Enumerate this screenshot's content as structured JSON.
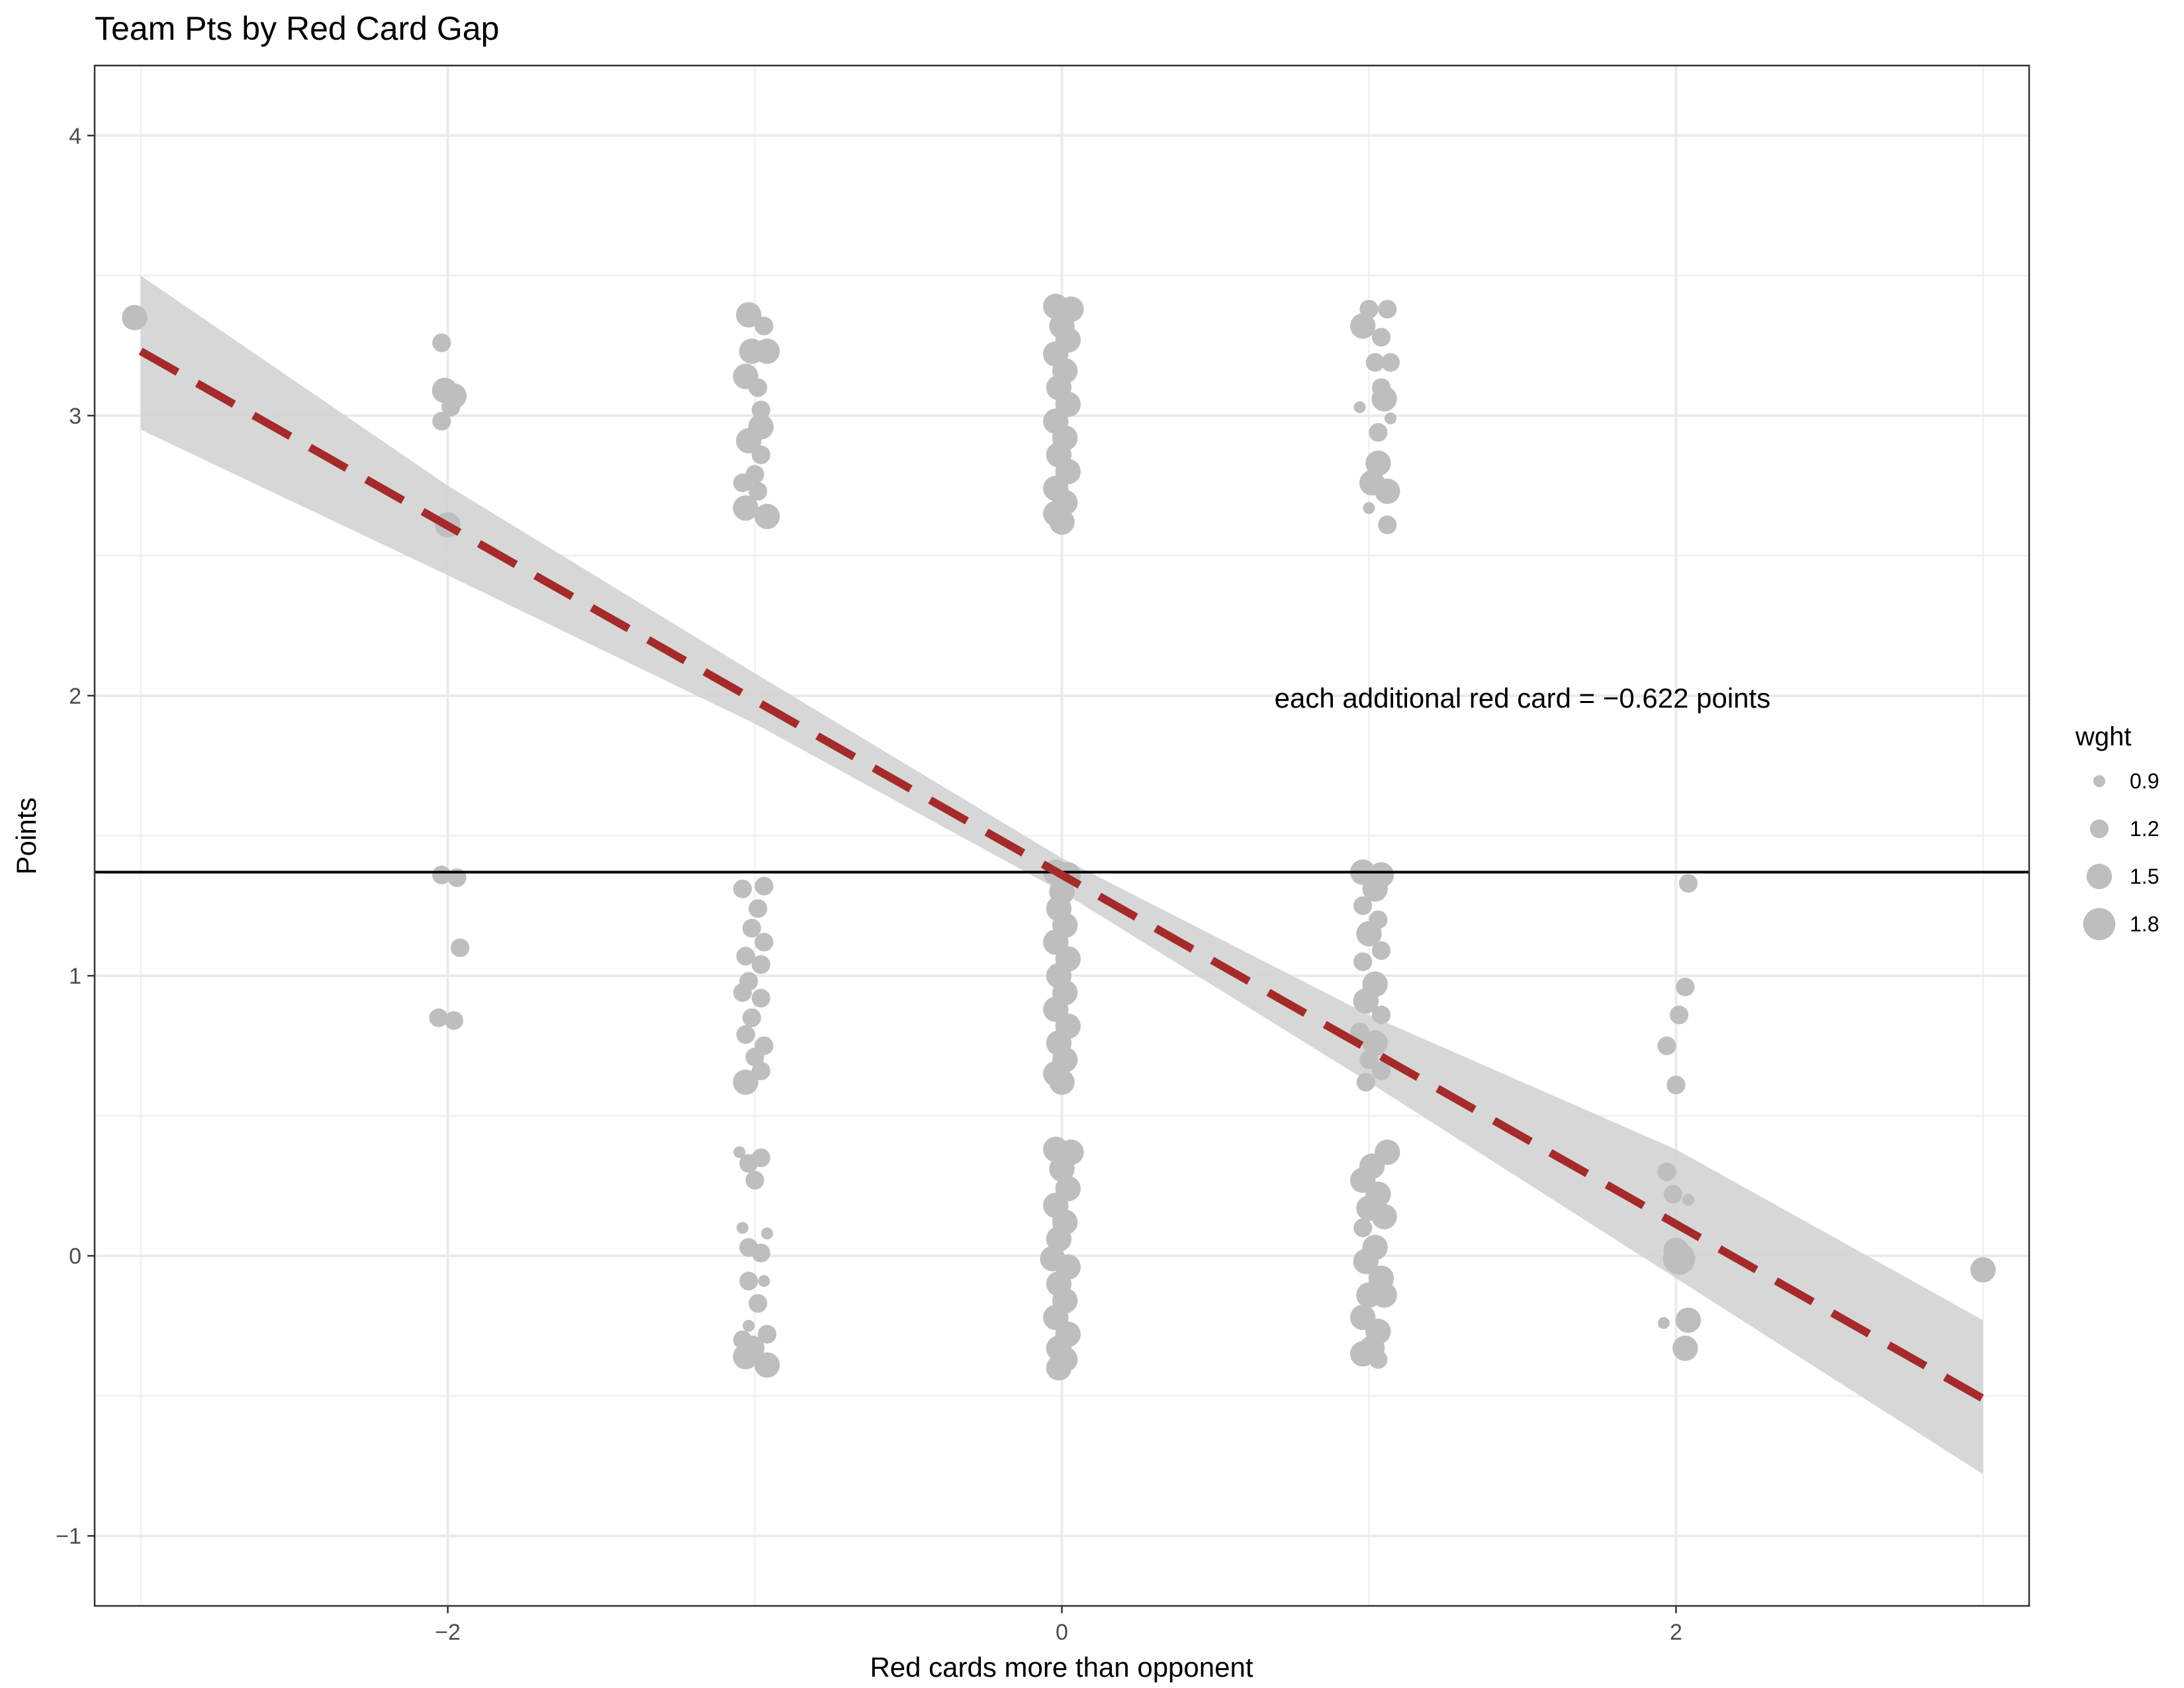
{
  "chart_data": {
    "type": "scatter",
    "title": "Team Pts by Red Card Gap",
    "xlabel": "Red cards more than opponent",
    "ylabel": "Points",
    "xlim": [
      -3.15,
      3.15
    ],
    "ylim": [
      -1.25,
      4.25
    ],
    "x_ticks": [
      -2,
      0,
      2
    ],
    "x_tick_labels": [
      "−2",
      "0",
      "2"
    ],
    "y_ticks": [
      -1,
      0,
      1,
      2,
      3,
      4
    ],
    "y_tick_labels": [
      "−1",
      "0",
      "1",
      "2",
      "3",
      "4"
    ],
    "x_minor_gridlines": [
      -3,
      -1,
      1,
      3
    ],
    "y_minor_gridlines": [
      -0.5,
      0.5,
      1.5,
      2.5,
      3.5
    ],
    "grid": true,
    "legend": {
      "title": "wght",
      "position": "right",
      "items": [
        {
          "label": "0.9",
          "size": 0.9
        },
        {
          "label": "1.2",
          "size": 1.2
        },
        {
          "label": "1.5",
          "size": 1.5
        },
        {
          "label": "1.8",
          "size": 1.8
        }
      ]
    },
    "point_color": "#bebebe",
    "hline": {
      "y": 1.37,
      "color": "#000000"
    },
    "fit": {
      "type": "linear",
      "x_range": [
        -3,
        3
      ],
      "y_start": 3.23,
      "y_end": -0.51,
      "slope": -0.622,
      "color": "#a52a2a",
      "dash": true
    },
    "confidence_band": {
      "color": "#d3d3d3",
      "x": [
        -3,
        -2,
        -1,
        0,
        1,
        2,
        3
      ],
      "upper": [
        3.5,
        2.75,
        2.08,
        1.42,
        0.86,
        0.38,
        -0.23
      ],
      "lower": [
        2.95,
        2.43,
        1.9,
        1.3,
        0.62,
        -0.08,
        -0.78
      ]
    },
    "annotation": {
      "text": "each additional red card = −0.622 points",
      "x": 1.5,
      "y": 1.99
    },
    "points": [
      {
        "x": -3.02,
        "y": 3.35,
        "w": 1.5
      },
      {
        "x": -2.02,
        "y": 3.26,
        "w": 1.2
      },
      {
        "x": -2.01,
        "y": 3.09,
        "w": 1.5
      },
      {
        "x": -1.98,
        "y": 3.07,
        "w": 1.5
      },
      {
        "x": -1.99,
        "y": 3.03,
        "w": 1.2
      },
      {
        "x": -2.02,
        "y": 2.98,
        "w": 1.2
      },
      {
        "x": -2.0,
        "y": 2.61,
        "w": 1.5
      },
      {
        "x": -2.02,
        "y": 1.36,
        "w": 1.2
      },
      {
        "x": -1.97,
        "y": 1.35,
        "w": 1.2
      },
      {
        "x": -1.96,
        "y": 1.1,
        "w": 1.2
      },
      {
        "x": -2.03,
        "y": 0.85,
        "w": 1.2
      },
      {
        "x": -1.98,
        "y": 0.84,
        "w": 1.2
      },
      {
        "x": 2.04,
        "y": 1.33,
        "w": 1.2
      },
      {
        "x": 2.03,
        "y": 0.96,
        "w": 1.2
      },
      {
        "x": 2.01,
        "y": 0.86,
        "w": 1.2
      },
      {
        "x": 1.97,
        "y": 0.75,
        "w": 1.2
      },
      {
        "x": 2.0,
        "y": 0.61,
        "w": 1.2
      },
      {
        "x": 1.97,
        "y": 0.3,
        "w": 1.2
      },
      {
        "x": 1.99,
        "y": 0.22,
        "w": 1.2
      },
      {
        "x": 2.04,
        "y": 0.2,
        "w": 0.9
      },
      {
        "x": 2.0,
        "y": 0.02,
        "w": 1.5
      },
      {
        "x": 2.01,
        "y": -0.01,
        "w": 1.8
      },
      {
        "x": 2.04,
        "y": -0.23,
        "w": 1.5
      },
      {
        "x": 1.96,
        "y": -0.24,
        "w": 0.9
      },
      {
        "x": 2.03,
        "y": -0.33,
        "w": 1.5
      },
      {
        "x": 3.0,
        "y": -0.05,
        "w": 1.5
      },
      {
        "x": 1.0,
        "y": 3.38,
        "w": 1.2
      },
      {
        "x": 1.06,
        "y": 3.38,
        "w": 1.2
      },
      {
        "x": 0.98,
        "y": 3.32,
        "w": 1.5
      },
      {
        "x": 1.04,
        "y": 3.28,
        "w": 1.2
      },
      {
        "x": 1.02,
        "y": 3.19,
        "w": 1.2
      },
      {
        "x": 1.07,
        "y": 3.19,
        "w": 1.2
      },
      {
        "x": 1.04,
        "y": 3.1,
        "w": 1.2
      },
      {
        "x": 1.05,
        "y": 3.06,
        "w": 1.5
      },
      {
        "x": 0.97,
        "y": 3.03,
        "w": 0.9
      },
      {
        "x": 1.07,
        "y": 2.99,
        "w": 0.9
      },
      {
        "x": 1.03,
        "y": 2.94,
        "w": 1.2
      },
      {
        "x": 1.03,
        "y": 2.83,
        "w": 1.5
      },
      {
        "x": 1.01,
        "y": 2.76,
        "w": 1.5
      },
      {
        "x": 1.06,
        "y": 2.73,
        "w": 1.5
      },
      {
        "x": 1.0,
        "y": 2.67,
        "w": 0.9
      },
      {
        "x": 1.06,
        "y": 2.61,
        "w": 1.2
      },
      {
        "x": -1.02,
        "y": 3.36,
        "w": 1.5
      },
      {
        "x": -0.97,
        "y": 3.32,
        "w": 1.2
      },
      {
        "x": -1.01,
        "y": 3.23,
        "w": 1.5
      },
      {
        "x": -0.96,
        "y": 3.23,
        "w": 1.5
      },
      {
        "x": -1.03,
        "y": 3.14,
        "w": 1.5
      },
      {
        "x": -0.99,
        "y": 3.1,
        "w": 1.2
      },
      {
        "x": -0.98,
        "y": 3.02,
        "w": 1.2
      },
      {
        "x": -0.98,
        "y": 2.96,
        "w": 1.5
      },
      {
        "x": -1.02,
        "y": 2.91,
        "w": 1.5
      },
      {
        "x": -0.98,
        "y": 2.86,
        "w": 1.2
      },
      {
        "x": -1.0,
        "y": 2.79,
        "w": 1.2
      },
      {
        "x": -1.04,
        "y": 2.76,
        "w": 1.2
      },
      {
        "x": -0.99,
        "y": 2.73,
        "w": 1.2
      },
      {
        "x": -1.03,
        "y": 2.67,
        "w": 1.5
      },
      {
        "x": -0.96,
        "y": 2.64,
        "w": 1.5
      },
      {
        "x": -1.04,
        "y": 1.31,
        "w": 1.2
      },
      {
        "x": -0.97,
        "y": 1.32,
        "w": 1.2
      },
      {
        "x": -0.99,
        "y": 1.24,
        "w": 1.2
      },
      {
        "x": -1.01,
        "y": 1.17,
        "w": 1.2
      },
      {
        "x": -0.97,
        "y": 1.12,
        "w": 1.2
      },
      {
        "x": -1.03,
        "y": 1.07,
        "w": 1.2
      },
      {
        "x": -0.98,
        "y": 1.04,
        "w": 1.2
      },
      {
        "x": -1.02,
        "y": 0.98,
        "w": 1.2
      },
      {
        "x": -1.04,
        "y": 0.94,
        "w": 1.2
      },
      {
        "x": -0.98,
        "y": 0.92,
        "w": 1.2
      },
      {
        "x": -1.01,
        "y": 0.85,
        "w": 1.2
      },
      {
        "x": -1.03,
        "y": 0.79,
        "w": 1.2
      },
      {
        "x": -0.97,
        "y": 0.75,
        "w": 1.2
      },
      {
        "x": -1.0,
        "y": 0.71,
        "w": 1.2
      },
      {
        "x": -0.98,
        "y": 0.66,
        "w": 1.2
      },
      {
        "x": -1.03,
        "y": 0.62,
        "w": 1.5
      },
      {
        "x": -0.98,
        "y": 0.35,
        "w": 1.2
      },
      {
        "x": -1.02,
        "y": 0.33,
        "w": 1.2
      },
      {
        "x": -1.05,
        "y": 0.37,
        "w": 0.9
      },
      {
        "x": -1.0,
        "y": 0.27,
        "w": 1.2
      },
      {
        "x": -1.04,
        "y": 0.1,
        "w": 0.9
      },
      {
        "x": -0.96,
        "y": 0.08,
        "w": 0.9
      },
      {
        "x": -1.02,
        "y": 0.03,
        "w": 1.2
      },
      {
        "x": -0.98,
        "y": 0.01,
        "w": 1.2
      },
      {
        "x": -1.02,
        "y": -0.09,
        "w": 1.2
      },
      {
        "x": -0.97,
        "y": -0.09,
        "w": 0.9
      },
      {
        "x": -0.99,
        "y": -0.17,
        "w": 1.2
      },
      {
        "x": -1.02,
        "y": -0.25,
        "w": 0.9
      },
      {
        "x": -1.04,
        "y": -0.3,
        "w": 1.2
      },
      {
        "x": -0.96,
        "y": -0.28,
        "w": 1.2
      },
      {
        "x": -1.01,
        "y": -0.33,
        "w": 1.5
      },
      {
        "x": -1.03,
        "y": -0.36,
        "w": 1.5
      },
      {
        "x": -0.96,
        "y": -0.39,
        "w": 1.5
      },
      {
        "x": -0.02,
        "y": 3.39,
        "w": 1.5
      },
      {
        "x": 0.03,
        "y": 3.38,
        "w": 1.5
      },
      {
        "x": 0.0,
        "y": 3.32,
        "w": 1.5
      },
      {
        "x": 0.02,
        "y": 3.27,
        "w": 1.5
      },
      {
        "x": -0.02,
        "y": 3.22,
        "w": 1.5
      },
      {
        "x": 0.01,
        "y": 3.16,
        "w": 1.5
      },
      {
        "x": -0.01,
        "y": 3.1,
        "w": 1.5
      },
      {
        "x": 0.02,
        "y": 3.04,
        "w": 1.5
      },
      {
        "x": -0.02,
        "y": 2.98,
        "w": 1.5
      },
      {
        "x": 0.01,
        "y": 2.92,
        "w": 1.5
      },
      {
        "x": -0.01,
        "y": 2.86,
        "w": 1.5
      },
      {
        "x": 0.02,
        "y": 2.8,
        "w": 1.5
      },
      {
        "x": -0.02,
        "y": 2.74,
        "w": 1.5
      },
      {
        "x": 0.01,
        "y": 2.69,
        "w": 1.5
      },
      {
        "x": -0.02,
        "y": 2.65,
        "w": 1.5
      },
      {
        "x": 0.0,
        "y": 2.62,
        "w": 1.5
      },
      {
        "x": -0.02,
        "y": 1.37,
        "w": 1.5
      },
      {
        "x": 0.02,
        "y": 1.36,
        "w": 1.5
      },
      {
        "x": 0.0,
        "y": 1.3,
        "w": 1.5
      },
      {
        "x": -0.01,
        "y": 1.24,
        "w": 1.5
      },
      {
        "x": 0.01,
        "y": 1.18,
        "w": 1.5
      },
      {
        "x": -0.02,
        "y": 1.12,
        "w": 1.5
      },
      {
        "x": 0.02,
        "y": 1.06,
        "w": 1.5
      },
      {
        "x": -0.01,
        "y": 1.0,
        "w": 1.5
      },
      {
        "x": 0.01,
        "y": 0.94,
        "w": 1.5
      },
      {
        "x": -0.02,
        "y": 0.88,
        "w": 1.5
      },
      {
        "x": 0.02,
        "y": 0.82,
        "w": 1.5
      },
      {
        "x": -0.01,
        "y": 0.76,
        "w": 1.5
      },
      {
        "x": 0.01,
        "y": 0.7,
        "w": 1.5
      },
      {
        "x": -0.02,
        "y": 0.65,
        "w": 1.5
      },
      {
        "x": 0.0,
        "y": 0.62,
        "w": 1.5
      },
      {
        "x": -0.02,
        "y": 0.38,
        "w": 1.5
      },
      {
        "x": 0.03,
        "y": 0.37,
        "w": 1.5
      },
      {
        "x": 0.0,
        "y": 0.31,
        "w": 1.5
      },
      {
        "x": 0.02,
        "y": 0.24,
        "w": 1.5
      },
      {
        "x": -0.02,
        "y": 0.18,
        "w": 1.5
      },
      {
        "x": 0.01,
        "y": 0.12,
        "w": 1.5
      },
      {
        "x": -0.01,
        "y": 0.06,
        "w": 1.5
      },
      {
        "x": -0.03,
        "y": -0.01,
        "w": 1.5
      },
      {
        "x": 0.02,
        "y": -0.04,
        "w": 1.5
      },
      {
        "x": -0.01,
        "y": -0.1,
        "w": 1.5
      },
      {
        "x": 0.01,
        "y": -0.16,
        "w": 1.5
      },
      {
        "x": -0.02,
        "y": -0.22,
        "w": 1.5
      },
      {
        "x": 0.02,
        "y": -0.28,
        "w": 1.5
      },
      {
        "x": -0.01,
        "y": -0.33,
        "w": 1.5
      },
      {
        "x": 0.01,
        "y": -0.37,
        "w": 1.5
      },
      {
        "x": -0.01,
        "y": -0.4,
        "w": 1.5
      },
      {
        "x": 0.98,
        "y": 1.37,
        "w": 1.5
      },
      {
        "x": 1.04,
        "y": 1.36,
        "w": 1.5
      },
      {
        "x": 1.02,
        "y": 1.31,
        "w": 1.5
      },
      {
        "x": 0.98,
        "y": 1.25,
        "w": 1.2
      },
      {
        "x": 1.03,
        "y": 1.2,
        "w": 1.2
      },
      {
        "x": 1.0,
        "y": 1.15,
        "w": 1.5
      },
      {
        "x": 1.04,
        "y": 1.09,
        "w": 1.2
      },
      {
        "x": 0.98,
        "y": 1.05,
        "w": 1.2
      },
      {
        "x": 1.02,
        "y": 0.97,
        "w": 1.5
      },
      {
        "x": 0.99,
        "y": 0.91,
        "w": 1.5
      },
      {
        "x": 1.04,
        "y": 0.86,
        "w": 1.2
      },
      {
        "x": 0.97,
        "y": 0.8,
        "w": 1.2
      },
      {
        "x": 1.02,
        "y": 0.76,
        "w": 1.5
      },
      {
        "x": 1.0,
        "y": 0.7,
        "w": 1.2
      },
      {
        "x": 1.04,
        "y": 0.66,
        "w": 1.2
      },
      {
        "x": 0.99,
        "y": 0.62,
        "w": 1.2
      },
      {
        "x": 1.06,
        "y": 0.37,
        "w": 1.5
      },
      {
        "x": 1.01,
        "y": 0.32,
        "w": 1.5
      },
      {
        "x": 0.98,
        "y": 0.27,
        "w": 1.5
      },
      {
        "x": 1.03,
        "y": 0.22,
        "w": 1.5
      },
      {
        "x": 1.0,
        "y": 0.17,
        "w": 1.5
      },
      {
        "x": 1.05,
        "y": 0.14,
        "w": 1.5
      },
      {
        "x": 0.98,
        "y": 0.1,
        "w": 1.2
      },
      {
        "x": 1.02,
        "y": 0.03,
        "w": 1.5
      },
      {
        "x": 0.99,
        "y": -0.02,
        "w": 1.5
      },
      {
        "x": 1.04,
        "y": -0.08,
        "w": 1.5
      },
      {
        "x": 1.0,
        "y": -0.14,
        "w": 1.5
      },
      {
        "x": 1.05,
        "y": -0.14,
        "w": 1.5
      },
      {
        "x": 0.98,
        "y": -0.22,
        "w": 1.5
      },
      {
        "x": 1.03,
        "y": -0.27,
        "w": 1.5
      },
      {
        "x": 1.01,
        "y": -0.33,
        "w": 1.5
      },
      {
        "x": 0.98,
        "y": -0.35,
        "w": 1.5
      },
      {
        "x": 1.03,
        "y": -0.37,
        "w": 1.2
      }
    ]
  }
}
